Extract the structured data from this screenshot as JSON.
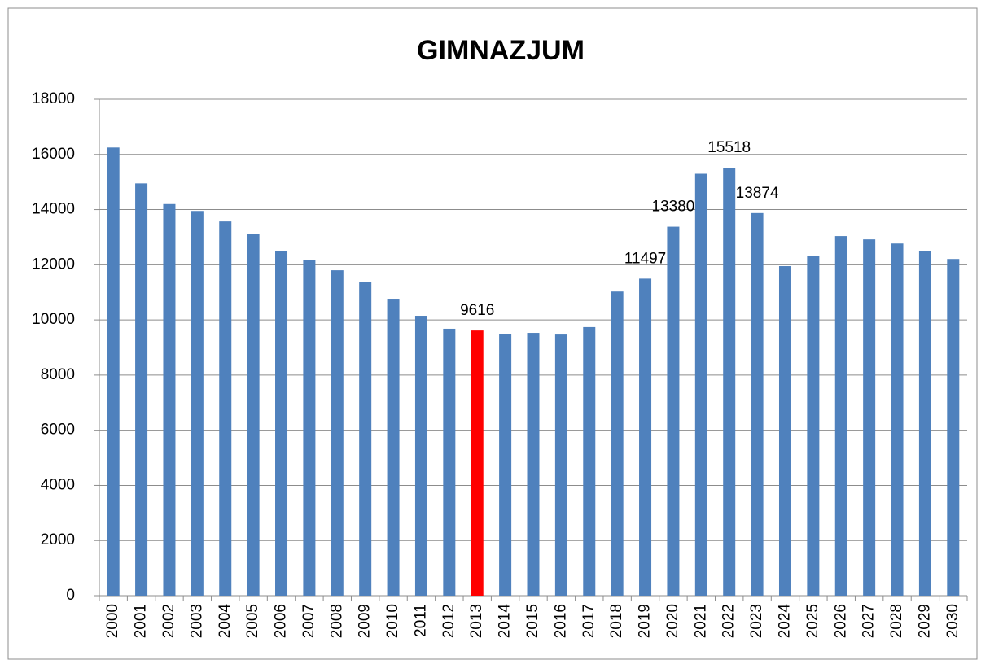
{
  "chart_data": {
    "type": "bar",
    "title": "GIMNAZJUM",
    "categories": [
      "2000",
      "2001",
      "2002",
      "2003",
      "2004",
      "2005",
      "2006",
      "2007",
      "2008",
      "2009",
      "2010",
      "2011",
      "2012",
      "2013",
      "2014",
      "2015",
      "2016",
      "2017",
      "2018",
      "2019",
      "2020",
      "2021",
      "2022",
      "2023",
      "2024",
      "2025",
      "2026",
      "2027",
      "2028",
      "2029",
      "2030"
    ],
    "values": [
      16250,
      14950,
      14200,
      13950,
      13570,
      13130,
      12510,
      12180,
      11800,
      11390,
      10740,
      10150,
      9680,
      9616,
      9500,
      9530,
      9470,
      9740,
      11030,
      11497,
      13380,
      15300,
      15518,
      13874,
      11950,
      12330,
      13040,
      12920,
      12770,
      12510,
      12210
    ],
    "value_labels": [
      null,
      null,
      null,
      null,
      null,
      null,
      null,
      null,
      null,
      null,
      null,
      null,
      null,
      "9616",
      null,
      null,
      null,
      null,
      null,
      "11497",
      "13380",
      null,
      "15518",
      "13874",
      null,
      null,
      null,
      null,
      null,
      null,
      null
    ],
    "colors": [
      "#4f81bd",
      "#4f81bd",
      "#4f81bd",
      "#4f81bd",
      "#4f81bd",
      "#4f81bd",
      "#4f81bd",
      "#4f81bd",
      "#4f81bd",
      "#4f81bd",
      "#4f81bd",
      "#4f81bd",
      "#4f81bd",
      "#ff0000",
      "#4f81bd",
      "#4f81bd",
      "#4f81bd",
      "#4f81bd",
      "#4f81bd",
      "#4f81bd",
      "#4f81bd",
      "#4f81bd",
      "#4f81bd",
      "#4f81bd",
      "#4f81bd",
      "#4f81bd",
      "#4f81bd",
      "#4f81bd",
      "#4f81bd",
      "#4f81bd",
      "#4f81bd"
    ],
    "ylim": [
      0,
      18000
    ],
    "yticks": [
      0,
      2000,
      4000,
      6000,
      8000,
      10000,
      12000,
      14000,
      16000,
      18000
    ],
    "grid": true
  }
}
